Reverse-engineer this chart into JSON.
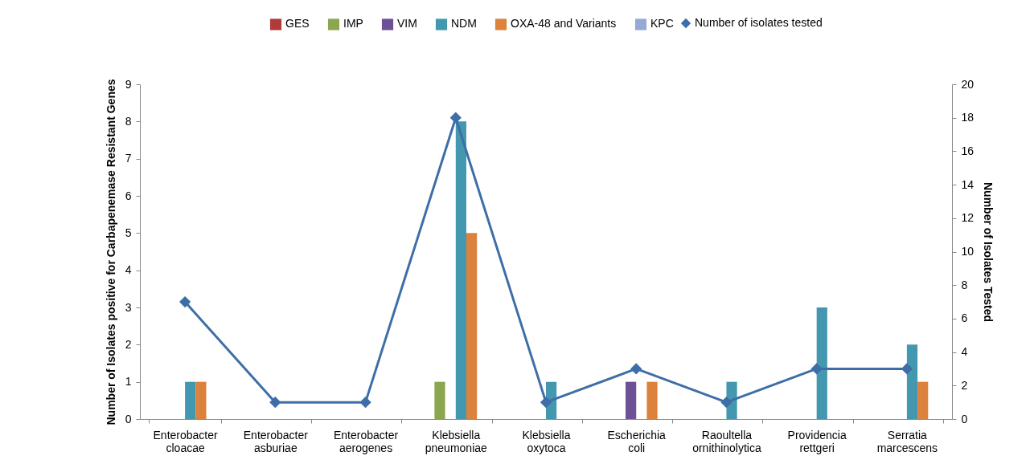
{
  "chart_data": {
    "type": "bar",
    "xlabel": null,
    "ylabel": "Number of Isolates positive for Carbapenemase Resistant Genes",
    "y2label": "Number of Isolates Tested",
    "categories": [
      "Enterobacter cloacae",
      "Enterobacter asburiae",
      "Enterobacter aerogenes",
      "Klebsiella pneumoniae",
      "Klebsiella oxytoca",
      "Escherichia coli",
      "Raoultella ornithinolytica",
      "Providencia rettgeri",
      "Serratia marcescens"
    ],
    "series": [
      {
        "name": "GES",
        "color": "#b03c3a",
        "values": [
          0,
          0,
          0,
          0,
          0,
          0,
          0,
          0,
          0
        ]
      },
      {
        "name": "IMP",
        "color": "#8aa64e",
        "values": [
          0,
          0,
          0,
          1,
          0,
          0,
          0,
          0,
          0
        ]
      },
      {
        "name": "VIM",
        "color": "#6e5096",
        "values": [
          0,
          0,
          0,
          0,
          0,
          1,
          0,
          0,
          0
        ]
      },
      {
        "name": "NDM",
        "color": "#4398b0",
        "values": [
          1,
          0,
          0,
          8,
          1,
          0,
          1,
          3,
          2
        ]
      },
      {
        "name": "OXA-48 and Variants",
        "color": "#dc823c",
        "values": [
          1,
          0,
          0,
          5,
          0,
          1,
          0,
          0,
          1
        ]
      },
      {
        "name": "KPC",
        "color": "#94a9d4",
        "values": [
          0,
          0,
          0,
          0,
          0,
          0,
          0,
          0,
          0
        ]
      },
      {
        "name": "Number of isolates tested",
        "type": "line",
        "axis": "y2",
        "color": "#3e6ea8",
        "marker": "diamond",
        "values": [
          7,
          1,
          1,
          18,
          1,
          3,
          1,
          3,
          3
        ]
      }
    ],
    "ylim": [
      0,
      9
    ],
    "yticks": [
      0,
      1,
      2,
      3,
      4,
      5,
      6,
      7,
      8,
      9
    ],
    "y2lim": [
      0,
      20
    ],
    "y2ticks": [
      0,
      2,
      4,
      6,
      8,
      10,
      12,
      14,
      16,
      18,
      20
    ],
    "grid": false,
    "legend": "top"
  }
}
